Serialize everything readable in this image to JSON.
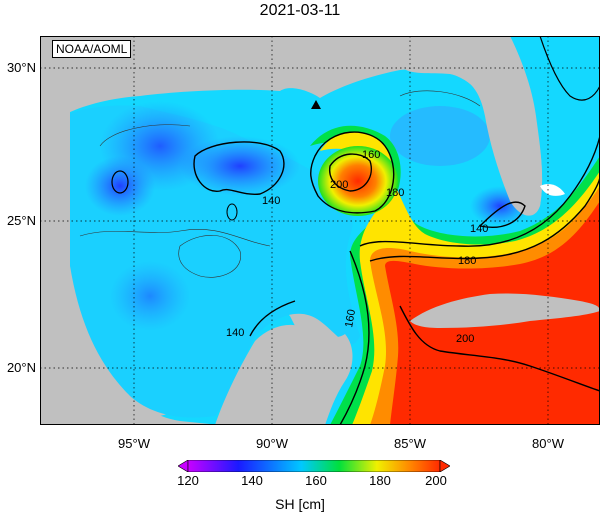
{
  "title": "2021-03-11",
  "credit": "NOAA/AOML",
  "lat_labels": [
    "30°N",
    "25°N",
    "20°N"
  ],
  "lon_labels": [
    "95°W",
    "90°W",
    "85°W",
    "80°W"
  ],
  "contour_labels": [
    "140",
    "140",
    "160",
    "160",
    "180",
    "180",
    "140",
    "200",
    "200"
  ],
  "colorbar": {
    "ticks": [
      "120",
      "140",
      "160",
      "180",
      "200"
    ],
    "units": "SH [cm]",
    "colors": [
      "#c800ff",
      "#1a1aff",
      "#00c8ff",
      "#00e03c",
      "#f0f000",
      "#ff8800",
      "#ff2a00"
    ]
  },
  "marker": "triangle"
}
